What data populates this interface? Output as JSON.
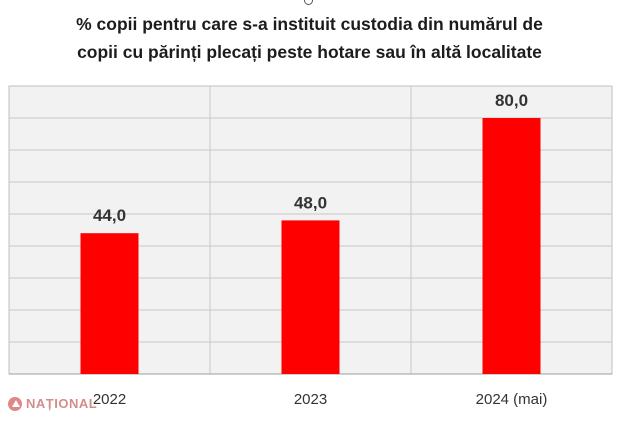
{
  "chart_data": {
    "type": "bar",
    "title_lines": [
      "% copii pentru care s-a instituit custodia din numărul de",
      "copii cu părinți plecați peste hotare sau în altă localitate"
    ],
    "categories": [
      "2022",
      "2023",
      "2024 (mai)"
    ],
    "values": [
      44.0,
      48.0,
      80.0
    ],
    "data_labels": [
      "44,0",
      "48,0",
      "80,0"
    ],
    "bar_color": "#ff0000",
    "ylim": [
      0,
      90
    ],
    "grid": true,
    "y_tick_labels_shown": false,
    "legend": "none"
  },
  "watermark": {
    "text": "NAȚIONAL",
    "color": "#b03030"
  }
}
